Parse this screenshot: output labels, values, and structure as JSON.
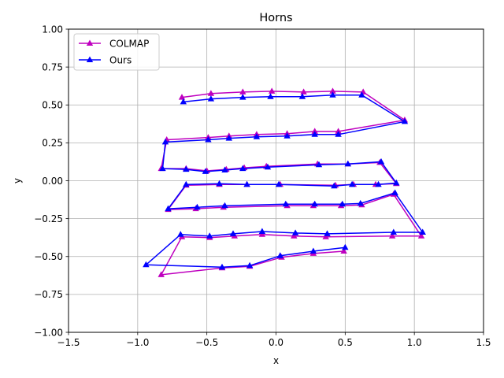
{
  "chart_data": {
    "type": "line",
    "title": "Horns",
    "xlabel": "x",
    "ylabel": "y",
    "xlim": [
      -1.5,
      1.5
    ],
    "ylim": [
      -1.0,
      1.0
    ],
    "xticks": [
      -1.5,
      -1.0,
      -0.5,
      0.0,
      0.5,
      1.0,
      1.5
    ],
    "yticks": [
      -1.0,
      -0.75,
      -0.5,
      -0.25,
      0.0,
      0.25,
      0.5,
      0.75,
      1.0
    ],
    "xtick_labels": [
      "−1.5",
      "−1.0",
      "−0.5",
      "0.0",
      "0.5",
      "1.0",
      "1.5"
    ],
    "ytick_labels": [
      "−1.00",
      "−0.75",
      "−0.50",
      "−0.25",
      "0.00",
      "0.25",
      "0.50",
      "0.75",
      "1.00"
    ],
    "grid": true,
    "legend_position": "top-left",
    "marker": "triangle-up",
    "series": [
      {
        "name": "COLMAP",
        "color": "#bf00bf",
        "points": [
          [
            -0.68,
            0.55
          ],
          [
            -0.47,
            0.575
          ],
          [
            -0.24,
            0.585
          ],
          [
            -0.03,
            0.59
          ],
          [
            0.2,
            0.585
          ],
          [
            0.41,
            0.59
          ],
          [
            0.63,
            0.585
          ],
          [
            0.93,
            0.4
          ],
          [
            0.45,
            0.325
          ],
          [
            0.28,
            0.325
          ],
          [
            0.08,
            0.31
          ],
          [
            -0.14,
            0.305
          ],
          [
            -0.34,
            0.295
          ],
          [
            -0.49,
            0.285
          ],
          [
            -0.79,
            0.27
          ],
          [
            -0.83,
            0.08
          ],
          [
            -0.65,
            0.08
          ],
          [
            -0.5,
            0.065
          ],
          [
            -0.36,
            0.075
          ],
          [
            -0.23,
            0.085
          ],
          [
            -0.07,
            0.095
          ],
          [
            0.3,
            0.11
          ],
          [
            0.52,
            0.11
          ],
          [
            0.75,
            0.12
          ],
          [
            0.87,
            -0.02
          ],
          [
            0.72,
            -0.025
          ],
          [
            0.56,
            -0.025
          ],
          [
            0.43,
            -0.03
          ],
          [
            0.03,
            -0.025
          ],
          [
            -0.21,
            -0.025
          ],
          [
            -0.41,
            -0.025
          ],
          [
            -0.65,
            -0.03
          ],
          [
            -0.78,
            -0.19
          ],
          [
            -0.58,
            -0.185
          ],
          [
            -0.38,
            -0.175
          ],
          [
            0.08,
            -0.165
          ],
          [
            0.27,
            -0.165
          ],
          [
            0.47,
            -0.165
          ],
          [
            0.62,
            -0.16
          ],
          [
            0.85,
            -0.09
          ],
          [
            1.05,
            -0.365
          ],
          [
            0.84,
            -0.365
          ],
          [
            0.36,
            -0.37
          ],
          [
            0.13,
            -0.365
          ],
          [
            -0.1,
            -0.355
          ],
          [
            -0.3,
            -0.365
          ],
          [
            -0.48,
            -0.375
          ],
          [
            -0.68,
            -0.37
          ],
          [
            -0.83,
            -0.62
          ],
          [
            -0.39,
            -0.575
          ],
          [
            -0.19,
            -0.565
          ],
          [
            0.04,
            -0.505
          ],
          [
            0.27,
            -0.48
          ],
          [
            0.49,
            -0.465
          ]
        ]
      },
      {
        "name": "Ours",
        "color": "#0000ff",
        "points": [
          [
            -0.67,
            0.52
          ],
          [
            -0.47,
            0.54
          ],
          [
            -0.24,
            0.55
          ],
          [
            -0.04,
            0.555
          ],
          [
            0.19,
            0.555
          ],
          [
            0.41,
            0.565
          ],
          [
            0.62,
            0.565
          ],
          [
            0.93,
            0.39
          ],
          [
            0.45,
            0.305
          ],
          [
            0.28,
            0.305
          ],
          [
            0.08,
            0.295
          ],
          [
            -0.14,
            0.29
          ],
          [
            -0.34,
            0.28
          ],
          [
            -0.49,
            0.27
          ],
          [
            -0.8,
            0.255
          ],
          [
            -0.82,
            0.08
          ],
          [
            -0.65,
            0.075
          ],
          [
            -0.51,
            0.06
          ],
          [
            -0.37,
            0.07
          ],
          [
            -0.24,
            0.08
          ],
          [
            -0.06,
            0.09
          ],
          [
            0.31,
            0.105
          ],
          [
            0.52,
            0.11
          ],
          [
            0.76,
            0.125
          ],
          [
            0.87,
            -0.015
          ],
          [
            0.74,
            -0.025
          ],
          [
            0.55,
            -0.025
          ],
          [
            0.42,
            -0.035
          ],
          [
            0.02,
            -0.025
          ],
          [
            -0.21,
            -0.025
          ],
          [
            -0.41,
            -0.02
          ],
          [
            -0.65,
            -0.025
          ],
          [
            -0.78,
            -0.185
          ],
          [
            -0.57,
            -0.175
          ],
          [
            -0.37,
            -0.165
          ],
          [
            0.07,
            -0.155
          ],
          [
            0.28,
            -0.155
          ],
          [
            0.48,
            -0.155
          ],
          [
            0.61,
            -0.15
          ],
          [
            0.86,
            -0.08
          ],
          [
            1.06,
            -0.34
          ],
          [
            0.85,
            -0.34
          ],
          [
            0.37,
            -0.35
          ],
          [
            0.14,
            -0.345
          ],
          [
            -0.1,
            -0.335
          ],
          [
            -0.31,
            -0.35
          ],
          [
            -0.48,
            -0.365
          ],
          [
            -0.69,
            -0.355
          ],
          [
            -0.94,
            -0.555
          ],
          [
            -0.39,
            -0.57
          ],
          [
            -0.19,
            -0.56
          ],
          [
            0.03,
            -0.495
          ],
          [
            0.27,
            -0.465
          ],
          [
            0.5,
            -0.44
          ]
        ]
      }
    ]
  }
}
